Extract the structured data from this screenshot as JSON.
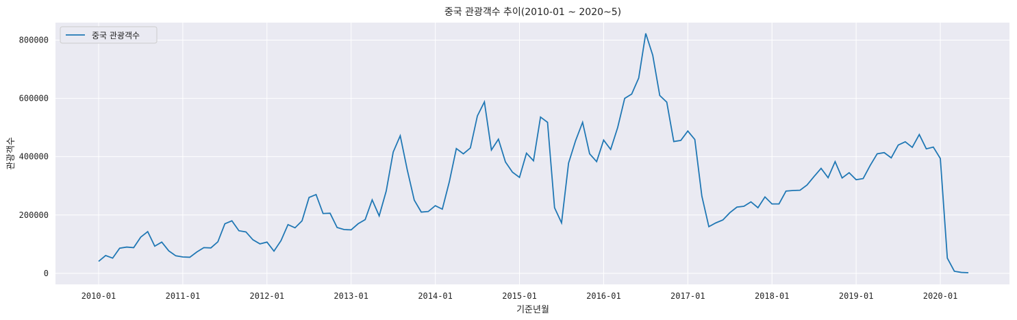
{
  "chart_data": {
    "type": "line",
    "title": "중국 관광객수 추이(2010-01 ~ 2020~5)",
    "xlabel": "기준년월",
    "ylabel": "관광객수",
    "x_tick_labels": [
      "2010-01",
      "2011-01",
      "2012-01",
      "2013-01",
      "2014-01",
      "2015-01",
      "2016-01",
      "2017-01",
      "2018-01",
      "2019-01",
      "2020-01"
    ],
    "y_ticks": [
      0,
      200000,
      400000,
      600000,
      800000
    ],
    "ylim": [
      -38000,
      860000
    ],
    "grid": true,
    "legend_position": "top-left",
    "x_start": "2010-01",
    "series": [
      {
        "name": "중국 관광객수",
        "color": "#1f77b4",
        "values": [
          41000,
          61000,
          52000,
          86000,
          90000,
          88000,
          124000,
          143000,
          93000,
          107000,
          77000,
          60000,
          56000,
          55000,
          73000,
          88000,
          87000,
          108000,
          170000,
          180000,
          146000,
          142000,
          115000,
          101000,
          107000,
          76000,
          112000,
          167000,
          156000,
          180000,
          260000,
          270000,
          205000,
          206000,
          157000,
          150000,
          149000,
          170000,
          184000,
          252000,
          197000,
          282000,
          416000,
          472000,
          355000,
          251000,
          210000,
          212000,
          232000,
          220000,
          314000,
          428000,
          410000,
          430000,
          540000,
          588000,
          423000,
          460000,
          382000,
          347000,
          329000,
          412000,
          386000,
          536000,
          518000,
          225000,
          173000,
          378000,
          455000,
          518000,
          410000,
          383000,
          457000,
          425000,
          500000,
          600000,
          615000,
          670000,
          823000,
          748000,
          610000,
          587000,
          452000,
          456000,
          488000,
          459000,
          265000,
          160000,
          173000,
          183000,
          208000,
          227000,
          230000,
          245000,
          225000,
          262000,
          238000,
          238000,
          282000,
          284000,
          285000,
          303000,
          332000,
          360000,
          328000,
          383000,
          327000,
          345000,
          321000,
          325000,
          370000,
          410000,
          414000,
          396000,
          440000,
          451000,
          432000,
          476000,
          427000,
          433000,
          394000,
          52000,
          7000,
          3000,
          2000
        ]
      }
    ]
  }
}
